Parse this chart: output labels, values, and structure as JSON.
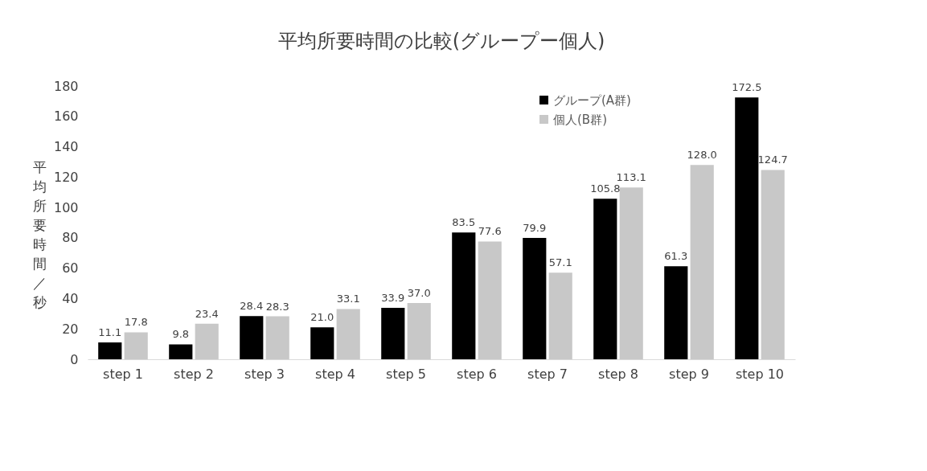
{
  "chart_data": {
    "type": "bar",
    "title": "平均所要時間の比較(グループー個人)",
    "ylabel": "平均所要時間／秒",
    "categories": [
      "step 1",
      "step 2",
      "step 3",
      "step 4",
      "step 5",
      "step 6",
      "step 7",
      "step 8",
      "step 9",
      "step 10"
    ],
    "series": [
      {
        "name": "グループ(A群)",
        "color": "#000000",
        "values": [
          11.1,
          9.8,
          28.4,
          21.0,
          33.9,
          83.5,
          79.9,
          105.8,
          61.3,
          172.5
        ],
        "value_labels": [
          "11.1",
          "9.8",
          "28.4",
          "21.0",
          "33.9",
          "83.5",
          "79.9",
          "105.8",
          "61.3",
          "172.5"
        ]
      },
      {
        "name": "個人(B群)",
        "color": "#c8c8c8",
        "values": [
          17.8,
          23.4,
          28.3,
          33.1,
          37.0,
          77.6,
          57.1,
          113.1,
          128.0,
          124.7
        ],
        "value_labels": [
          "17.8",
          "23.4",
          "28.3",
          "33.1",
          "37.0",
          "77.6",
          "57.1",
          "113.1",
          "128.0",
          "124.7"
        ]
      }
    ],
    "ylim": [
      0,
      180
    ],
    "yticks": [
      0,
      20,
      40,
      60,
      80,
      100,
      120,
      140,
      160,
      180
    ],
    "legend": "top",
    "grid": false
  }
}
